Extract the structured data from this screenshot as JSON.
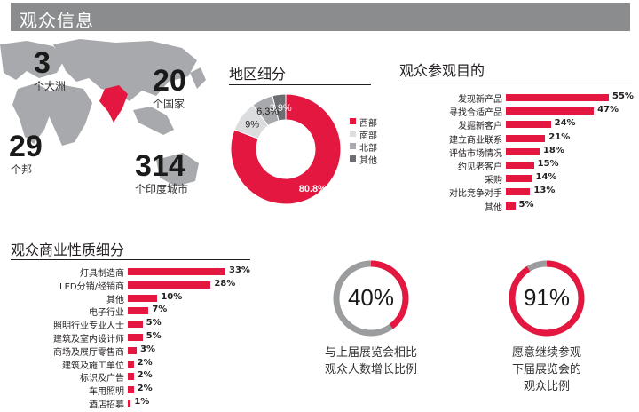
{
  "header": {
    "title": "观众信息"
  },
  "map": {
    "stats": [
      {
        "value": "3",
        "label": "个大洲"
      },
      {
        "value": "20",
        "label": "个国家"
      },
      {
        "value": "29",
        "label": "个邦"
      },
      {
        "value": "314",
        "label": "个印度城市"
      }
    ],
    "colors": {
      "land": "#a7a9ac",
      "highlight": "#e3173f"
    }
  },
  "region": {
    "title": "地区细分",
    "legend": [
      "西部",
      "南部",
      "北部",
      "其他"
    ],
    "colors": [
      "#e3173f",
      "#dcdddf",
      "#a7a9ac",
      "#6d6e71"
    ],
    "data_labels": [
      "80.8%",
      "9%",
      "6.3%",
      "3.9%"
    ]
  },
  "purpose": {
    "title": "观众参观目的"
  },
  "business": {
    "title": "观众商业性质细分"
  },
  "rings": [
    {
      "value": "40%",
      "fraction": 0.4,
      "caption1": "与上届展览会相比",
      "caption2": "观众人数增长比例"
    },
    {
      "value": "91%",
      "fraction": 0.91,
      "caption1": "愿意继续参观",
      "caption2": "下届展览会的",
      "caption3": "观众比例"
    }
  ],
  "chart_data": [
    {
      "type": "pie",
      "title": "地区细分",
      "categories": [
        "西部",
        "南部",
        "北部",
        "其他"
      ],
      "values": [
        80.8,
        9,
        6.3,
        3.9
      ]
    },
    {
      "type": "bar",
      "title": "观众参观目的",
      "categories": [
        "发现新产品",
        "寻找合适产品",
        "发掘新客户",
        "建立商业联系",
        "评估市场情况",
        "约见老客户",
        "采购",
        "对比竞争对手",
        "其他"
      ],
      "values": [
        55,
        47,
        24,
        21,
        18,
        15,
        14,
        13,
        5
      ],
      "value_labels": [
        "55%",
        "47%",
        "24%",
        "21%",
        "18%",
        "15%",
        "14%",
        "13%",
        "5%"
      ]
    },
    {
      "type": "bar",
      "title": "观众商业性质细分",
      "categories": [
        "灯具制造商",
        "LED分销/经销商",
        "其他",
        "电子行业",
        "照明行业专业人士",
        "建筑及室内设计师",
        "商场及展厅零售商",
        "建筑及施工单位",
        "标识及广告",
        "车用照明",
        "酒店招募"
      ],
      "values": [
        33,
        28,
        10,
        7,
        5,
        5,
        3,
        2,
        2,
        2,
        1
      ],
      "value_labels": [
        "33%",
        "28%",
        "10%",
        "7%",
        "5%",
        "5%",
        "3%",
        "2%",
        "2%",
        "2%",
        "1%"
      ]
    }
  ]
}
